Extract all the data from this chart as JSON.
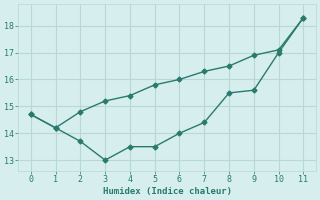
{
  "xlabel": "Humidex (Indice chaleur)",
  "line1_x": [
    0,
    1,
    2,
    3,
    4,
    5,
    6,
    7,
    8,
    9,
    10,
    11
  ],
  "line1_y": [
    14.7,
    14.2,
    13.7,
    13.0,
    13.5,
    13.5,
    14.0,
    14.4,
    15.5,
    15.6,
    17.0,
    18.3
  ],
  "line2_x": [
    0,
    1,
    2,
    3,
    4,
    5,
    6,
    7,
    8,
    9,
    10,
    11
  ],
  "line2_y": [
    14.7,
    14.2,
    14.8,
    15.2,
    15.4,
    15.8,
    16.0,
    16.3,
    16.5,
    16.9,
    17.1,
    18.3
  ],
  "line_color": "#2a7a6e",
  "bg_color": "#d6eeee",
  "grid_color": "#b8d8d8",
  "xlim": [
    -0.5,
    11.5
  ],
  "ylim": [
    12.6,
    18.8
  ],
  "yticks": [
    13,
    14,
    15,
    16,
    17,
    18
  ],
  "xticks": [
    0,
    1,
    2,
    3,
    4,
    5,
    6,
    7,
    8,
    9,
    10,
    11
  ]
}
